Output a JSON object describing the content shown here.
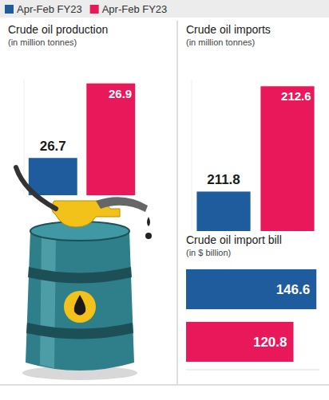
{
  "chart_data": [
    {
      "type": "bar",
      "title": "Crude oil production",
      "subtitle": "(in million tonnes)",
      "categories": [
        null
      ],
      "series": [
        {
          "name": "Apr-Feb FY23",
          "color": "#1f5c9e",
          "values": [
            26.7
          ]
        },
        {
          "name": "Apr-Feb FY23",
          "color": "#e8185a",
          "values": [
            26.9
          ]
        }
      ],
      "ylim": [
        26.6,
        26.91
      ],
      "tick_labels": false,
      "data_labels": true,
      "legend": "top"
    },
    {
      "type": "bar",
      "title": "Crude oil imports",
      "subtitle": "(in million tonnes)",
      "categories": [
        null
      ],
      "series": [
        {
          "name": "Apr-Feb FY23",
          "color": "#1f5c9e",
          "values": [
            211.8
          ]
        },
        {
          "name": "Apr-Feb FY23",
          "color": "#e8185a",
          "values": [
            212.6
          ]
        }
      ],
      "ylim": [
        211.5,
        212.65
      ],
      "tick_labels": false,
      "data_labels": true
    },
    {
      "type": "bar",
      "orientation": "horizontal",
      "title": "Crude oil import bill",
      "subtitle": "(in $ billion)",
      "categories": [
        null
      ],
      "series": [
        {
          "name": "Apr-Feb FY23",
          "color": "#1f5c9e",
          "values": [
            146.6
          ]
        },
        {
          "name": "Apr-Feb FY23",
          "color": "#e8185a",
          "values": [
            120.8
          ]
        }
      ],
      "xlim": [
        0,
        150
      ],
      "tick_labels": false,
      "data_labels": true
    }
  ]
}
